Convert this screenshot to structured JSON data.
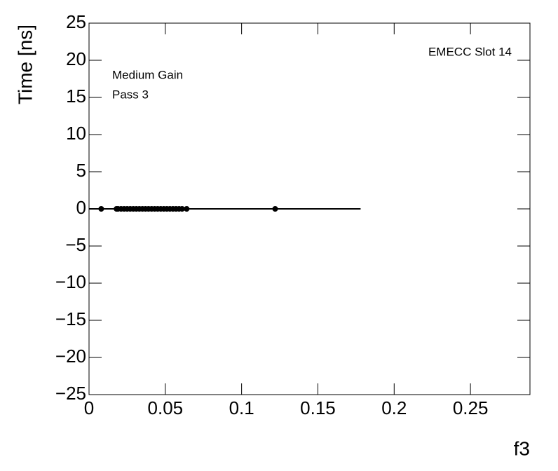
{
  "chart_data": {
    "type": "scatter",
    "y_label": "Time [ns]",
    "x_label": "f3",
    "annotations": [
      "EMECC Slot 14",
      "Medium Gain",
      "Pass 3"
    ],
    "color": "#000000",
    "x": [
      0.008,
      0.018,
      0.019,
      0.021,
      0.023,
      0.025,
      0.027,
      0.029,
      0.031,
      0.033,
      0.035,
      0.037,
      0.039,
      0.041,
      0.043,
      0.045,
      0.047,
      0.049,
      0.051,
      0.053,
      0.055,
      0.057,
      0.059,
      0.061,
      0.064,
      0.122
    ],
    "values": [
      0,
      0,
      0,
      0,
      0,
      0,
      0,
      0,
      0,
      0,
      0,
      0,
      0,
      0,
      0,
      0,
      0,
      0,
      0,
      0,
      0,
      0,
      0,
      0,
      0,
      0
    ],
    "fit_line": {
      "x": [
        0,
        0.178
      ],
      "values": [
        0,
        0
      ]
    },
    "xlim": [
      0,
      0.289
    ],
    "ylim": [
      -25,
      25
    ],
    "xticks": [
      0,
      0.05,
      0.1,
      0.15,
      0.2,
      0.25
    ],
    "yticks": [
      {
        "value": -25,
        "label": "−25"
      },
      {
        "value": -20,
        "label": "−20"
      },
      {
        "value": -15,
        "label": "−15"
      },
      {
        "value": -10,
        "label": "−10"
      },
      {
        "value": -5,
        "label": "−5"
      },
      0,
      5,
      10,
      15,
      20,
      25
    ]
  }
}
